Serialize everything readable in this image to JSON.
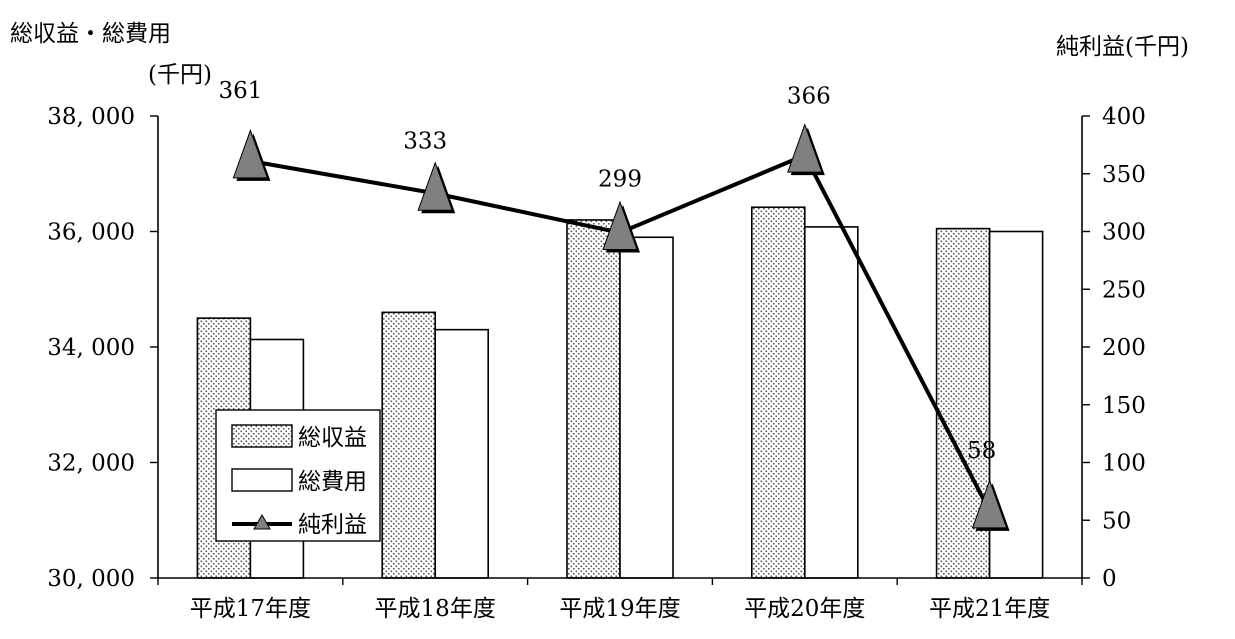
{
  "chart_data": {
    "type": "bar",
    "categories": [
      "平成17年度",
      "平成18年度",
      "平成19年度",
      "平成20年度",
      "平成21年度"
    ],
    "left_axis": {
      "label_line1": "総収益・総費用",
      "label_line2": "(千円)",
      "ylim": [
        30000,
        38000
      ],
      "ticks": [
        30000,
        32000,
        34000,
        36000,
        38000
      ],
      "tick_labels": [
        "30, 000",
        "32, 000",
        "34, 000",
        "36, 000",
        "38, 000"
      ]
    },
    "right_axis": {
      "label": "純利益(千円)",
      "ylim": [
        0,
        400
      ],
      "ticks": [
        0,
        50,
        100,
        150,
        200,
        250,
        300,
        350,
        400
      ],
      "tick_labels": [
        "0",
        "50",
        "100",
        "150",
        "200",
        "250",
        "300",
        "350",
        "400"
      ]
    },
    "series": [
      {
        "name": "総収益",
        "type": "bar",
        "axis": "left",
        "pattern": "dots",
        "values": [
          34500,
          34600,
          36200,
          36420,
          36050
        ]
      },
      {
        "name": "総費用",
        "type": "bar",
        "axis": "left",
        "pattern": "plain",
        "values": [
          34130,
          34300,
          35900,
          36080,
          36000
        ]
      },
      {
        "name": "純利益",
        "type": "line",
        "axis": "right",
        "marker": "triangle",
        "values": [
          361,
          333,
          299,
          366,
          58
        ],
        "data_labels": [
          "361",
          "333",
          "299",
          "366",
          "58"
        ]
      }
    ],
    "legend": {
      "position": "bottom-left",
      "entries": [
        "総収益",
        "総費用",
        "純利益"
      ]
    },
    "grid": false,
    "colors": {
      "bar_outline": "#000000",
      "dot": "#555555",
      "line": "#000000",
      "marker_fill": "#808080"
    }
  }
}
